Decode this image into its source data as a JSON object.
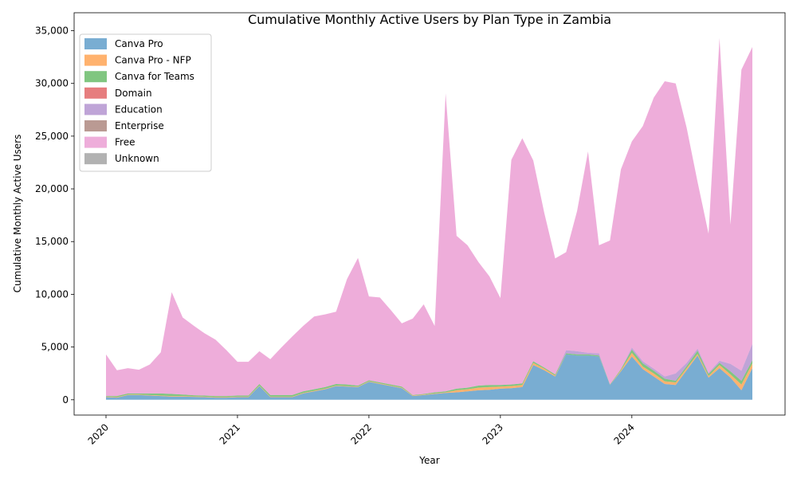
{
  "chart_data": {
    "type": "area",
    "stacked": true,
    "title": "Cumulative Monthly Active Users by Plan Type in Zambia",
    "xlabel": "Year",
    "ylabel": "Cumulative Monthly Active Users",
    "x_ticks": [
      "2020",
      "2021",
      "2022",
      "2023",
      "2024"
    ],
    "x_tick_months": [
      0,
      12,
      24,
      36,
      48
    ],
    "x_range_months": [
      0,
      59
    ],
    "y_ticks": [
      "0",
      "5,000",
      "10,000",
      "15,000",
      "20,000",
      "25,000",
      "30,000",
      "35,000"
    ],
    "ylim": [
      -1450,
      36700
    ],
    "legend_position": "top-left",
    "colors": {
      "Canva Pro": "#1f77b4",
      "Canva Pro - NFP": "#ff7f0e",
      "Canva for Teams": "#2ca02c",
      "Domain": "#d62728",
      "Education": "#9467bd",
      "Enterprise": "#8c564b",
      "Free": "#e377c2",
      "Unknown": "#7f7f7f"
    },
    "area_opacity": 0.6,
    "x": [
      "2020-01",
      "2020-02",
      "2020-03",
      "2020-04",
      "2020-05",
      "2020-06",
      "2020-07",
      "2020-08",
      "2020-09",
      "2020-10",
      "2020-11",
      "2020-12",
      "2021-01",
      "2021-02",
      "2021-03",
      "2021-04",
      "2021-05",
      "2021-06",
      "2021-07",
      "2021-08",
      "2021-09",
      "2021-10",
      "2021-11",
      "2021-12",
      "2022-01",
      "2022-02",
      "2022-03",
      "2022-04",
      "2022-05",
      "2022-06",
      "2022-07",
      "2022-08",
      "2022-09",
      "2022-10",
      "2022-11",
      "2022-12",
      "2023-01",
      "2023-02",
      "2023-03",
      "2023-04",
      "2023-05",
      "2023-06",
      "2023-07",
      "2023-08",
      "2023-09",
      "2023-10",
      "2023-11",
      "2023-12",
      "2024-01",
      "2024-02",
      "2024-03",
      "2024-04",
      "2024-05",
      "2024-06",
      "2024-07",
      "2024-08",
      "2024-09",
      "2024-10",
      "2024-11",
      "2024-12"
    ],
    "series": [
      {
        "name": "Canva Pro",
        "values": [
          250,
          200,
          450,
          450,
          400,
          350,
          300,
          300,
          280,
          250,
          200,
          200,
          250,
          250,
          1300,
          250,
          250,
          250,
          600,
          800,
          1000,
          1300,
          1250,
          1200,
          1700,
          1500,
          1300,
          1100,
          350,
          450,
          550,
          650,
          700,
          800,
          900,
          950,
          1050,
          1100,
          1200,
          3300,
          2800,
          2200,
          4300,
          4200,
          4200,
          4100,
          1400,
          2700,
          4100,
          2900,
          2200,
          1500,
          1400,
          2800,
          4200,
          2100,
          3000,
          2100,
          900,
          3000
        ]
      },
      {
        "name": "Canva Pro - NFP",
        "values": [
          50,
          50,
          50,
          50,
          50,
          50,
          50,
          50,
          50,
          50,
          50,
          50,
          50,
          50,
          50,
          50,
          50,
          50,
          50,
          50,
          50,
          50,
          50,
          50,
          50,
          50,
          50,
          50,
          50,
          50,
          50,
          50,
          200,
          200,
          250,
          250,
          200,
          200,
          200,
          200,
          150,
          100,
          0,
          0,
          0,
          0,
          0,
          100,
          350,
          250,
          300,
          250,
          250,
          200,
          150,
          150,
          300,
          300,
          550,
          450
        ]
      },
      {
        "name": "Canva for Teams",
        "values": [
          50,
          100,
          100,
          100,
          150,
          200,
          200,
          150,
          100,
          100,
          100,
          100,
          100,
          100,
          150,
          150,
          150,
          150,
          150,
          150,
          150,
          150,
          150,
          100,
          100,
          100,
          100,
          100,
          50,
          50,
          100,
          100,
          150,
          150,
          200,
          200,
          150,
          150,
          150,
          150,
          100,
          100,
          100,
          100,
          100,
          100,
          50,
          100,
          300,
          300,
          250,
          250,
          150,
          200,
          300,
          200,
          200,
          300,
          350,
          300
        ]
      },
      {
        "name": "Domain",
        "values": [
          0,
          0,
          0,
          0,
          0,
          0,
          0,
          0,
          0,
          0,
          0,
          0,
          0,
          0,
          0,
          0,
          0,
          0,
          0,
          0,
          0,
          0,
          0,
          0,
          0,
          0,
          0,
          0,
          0,
          0,
          0,
          0,
          0,
          0,
          0,
          0,
          0,
          0,
          0,
          0,
          0,
          0,
          0,
          0,
          0,
          0,
          0,
          0,
          0,
          0,
          0,
          0,
          0,
          0,
          0,
          0,
          0,
          0,
          0,
          0
        ]
      },
      {
        "name": "Education",
        "values": [
          0,
          0,
          0,
          0,
          0,
          0,
          0,
          0,
          0,
          0,
          0,
          0,
          0,
          0,
          0,
          0,
          0,
          0,
          0,
          0,
          0,
          0,
          0,
          0,
          0,
          0,
          0,
          0,
          0,
          0,
          0,
          0,
          0,
          0,
          0,
          0,
          0,
          0,
          0,
          0,
          0,
          0,
          300,
          300,
          150,
          200,
          0,
          0,
          200,
          200,
          200,
          200,
          700,
          300,
          200,
          100,
          200,
          700,
          950,
          1550
        ]
      },
      {
        "name": "Enterprise",
        "values": [
          0,
          0,
          0,
          0,
          0,
          0,
          0,
          0,
          0,
          0,
          0,
          0,
          0,
          0,
          0,
          0,
          0,
          0,
          0,
          0,
          0,
          0,
          0,
          0,
          0,
          0,
          0,
          0,
          0,
          0,
          0,
          0,
          0,
          0,
          0,
          0,
          0,
          0,
          0,
          0,
          0,
          0,
          0,
          0,
          0,
          0,
          0,
          0,
          0,
          0,
          0,
          0,
          0,
          0,
          0,
          0,
          0,
          0,
          0,
          0
        ]
      },
      {
        "name": "Free",
        "values": [
          3950,
          2450,
          2400,
          2250,
          2750,
          3900,
          9650,
          7300,
          6600,
          5900,
          5350,
          4350,
          3200,
          3200,
          3100,
          3400,
          4500,
          5550,
          6200,
          6900,
          6900,
          6850,
          10000,
          12100,
          7950,
          8050,
          7050,
          6000,
          7250,
          8500,
          6300,
          28250,
          14500,
          13500,
          11700,
          10300,
          8250,
          21300,
          23250,
          19050,
          14700,
          11000,
          9300,
          13300,
          19100,
          10250,
          13650,
          18950,
          19550,
          22300,
          25700,
          28000,
          27500,
          22300,
          15800,
          13200,
          30600,
          13200,
          28550,
          28150
        ]
      },
      {
        "name": "Unknown",
        "values": [
          0,
          0,
          0,
          0,
          0,
          0,
          0,
          0,
          0,
          0,
          0,
          0,
          0,
          0,
          0,
          0,
          0,
          0,
          0,
          0,
          0,
          0,
          0,
          0,
          0,
          0,
          0,
          0,
          0,
          0,
          0,
          0,
          0,
          0,
          0,
          0,
          0,
          0,
          0,
          0,
          0,
          0,
          0,
          0,
          0,
          0,
          0,
          0,
          0,
          0,
          0,
          0,
          0,
          0,
          0,
          0,
          0,
          0,
          0,
          0
        ]
      }
    ]
  }
}
